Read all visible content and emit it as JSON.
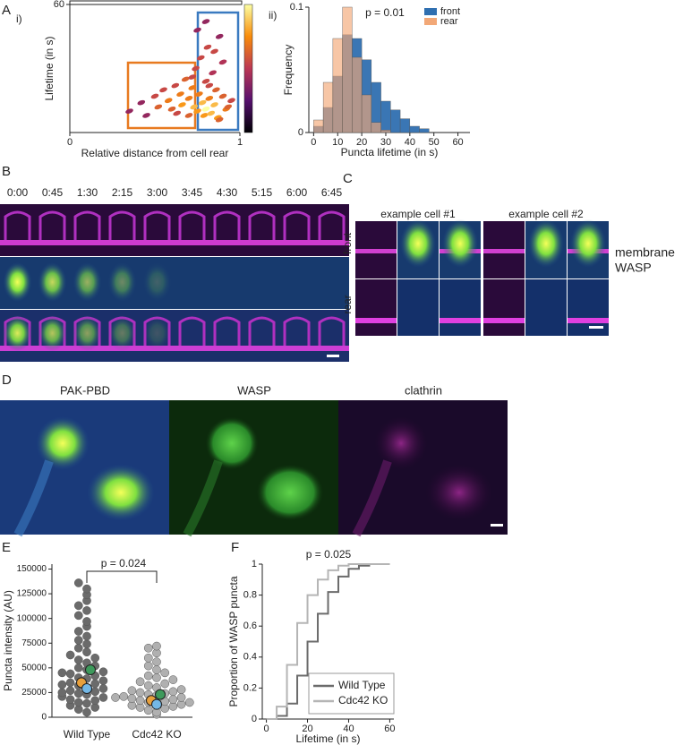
{
  "panel_labels": {
    "a": "A",
    "a_i": "i)",
    "a_ii": "ii)",
    "b": "B",
    "c": "C",
    "d": "D",
    "e": "E",
    "f": "F"
  },
  "chart_data": [
    {
      "type": "scatter",
      "colormap": "inferno",
      "x_label": "Relative distance from cell rear",
      "y_label": "Lifetime (in s)",
      "x": [
        0.35,
        0.42,
        0.45,
        0.5,
        0.52,
        0.55,
        0.58,
        0.6,
        0.62,
        0.63,
        0.65,
        0.66,
        0.68,
        0.7,
        0.7,
        0.72,
        0.73,
        0.74,
        0.75,
        0.76,
        0.77,
        0.78,
        0.79,
        0.8,
        0.8,
        0.81,
        0.82,
        0.83,
        0.84,
        0.85,
        0.86,
        0.87,
        0.88,
        0.9,
        0.92,
        0.95,
        0.75,
        0.8,
        0.85,
        0.9,
        0.72,
        0.82,
        0.88,
        0.93
      ],
      "y": [
        10,
        14,
        8,
        17,
        12,
        20,
        15,
        11,
        22,
        9,
        18,
        13,
        25,
        16,
        8,
        21,
        12,
        30,
        10,
        18,
        35,
        14,
        8,
        24,
        11,
        40,
        16,
        9,
        28,
        13,
        20,
        7,
        45,
        17,
        11,
        15,
        48,
        52,
        38,
        33,
        26,
        22,
        6,
        12
      ],
      "xlim": [
        0,
        1
      ],
      "ylim": [
        0,
        60
      ],
      "xticks": [
        0,
        1
      ],
      "yticks": [
        60
      ]
    },
    {
      "type": "histogram",
      "x_label": "Puncta lifetime (in s)",
      "y_label": "Frequency",
      "annotation": "p = 0.01",
      "bins": [
        0,
        4,
        8,
        12,
        16,
        20,
        24,
        28,
        32,
        36,
        40,
        44,
        48
      ],
      "series": [
        {
          "name": "front",
          "color": "#2f6fb0",
          "values": [
            0.005,
            0.02,
            0.045,
            0.078,
            0.075,
            0.058,
            0.04,
            0.025,
            0.018,
            0.011,
            0.005,
            0.003
          ]
        },
        {
          "name": "rear",
          "color": "#f2a877",
          "values": [
            0.01,
            0.04,
            0.075,
            0.1,
            0.06,
            0.03,
            0.008,
            0.002,
            0,
            0,
            0,
            0
          ]
        }
      ],
      "xlim": [
        -2,
        65
      ],
      "ylim": [
        0,
        0.1
      ],
      "xticks": [
        0,
        10,
        20,
        30,
        40,
        50,
        60
      ],
      "yticks": [
        0,
        0.1
      ]
    },
    {
      "type": "swarm",
      "y_label": "Puncta intensity (AU)",
      "annotation": "p = 0.024",
      "categories": [
        "Wild Type",
        "Cdc42 KO"
      ],
      "colors": [
        "#6b6b6b",
        "#b0b0b0"
      ],
      "values": [
        [
          5000,
          8000,
          10000,
          12000,
          14000,
          15000,
          17000,
          18000,
          20000,
          21000,
          23000,
          24000,
          26000,
          27000,
          29000,
          30000,
          32000,
          34000,
          35000,
          37000,
          39000,
          40000,
          42000,
          44000,
          46000,
          48000,
          50000,
          52000,
          55000,
          58000,
          60000,
          63000,
          66000,
          70000,
          74000,
          78000,
          82000,
          87000,
          92000,
          97000,
          103000,
          108000,
          113000,
          118000,
          124000,
          130000,
          136000,
          25000,
          33000,
          45000
        ],
        [
          3000,
          5000,
          7000,
          9000,
          10000,
          11000,
          12000,
          13000,
          14000,
          15000,
          16000,
          17000,
          18000,
          19000,
          20000,
          21000,
          22000,
          23000,
          24000,
          25000,
          26000,
          27000,
          28000,
          30000,
          32000,
          34000,
          36000,
          38000,
          40000,
          42000,
          45000,
          48000,
          52000,
          56000,
          60000,
          65000,
          70000,
          72000,
          15000,
          20000
        ]
      ],
      "replicate_means": [
        {
          "color": "#3e9a5c",
          "values": [
            48000,
            23000
          ]
        },
        {
          "color": "#e8a03c",
          "values": [
            35000,
            17000
          ]
        },
        {
          "color": "#74b8e6",
          "values": [
            29000,
            13000
          ]
        }
      ],
      "ylim": [
        0,
        155000
      ],
      "yticks": [
        0,
        25000,
        50000,
        75000,
        100000,
        125000,
        150000
      ]
    },
    {
      "type": "step",
      "x_label": "Lifetime (in s)",
      "y_label": "Proportion of WASP puncta",
      "annotation": "p = 0.025",
      "x": [
        0,
        5,
        10,
        15,
        20,
        25,
        30,
        35,
        40,
        45,
        50,
        55,
        60
      ],
      "series": [
        {
          "name": "Wild Type",
          "color": "#6b6b6b",
          "values": [
            0,
            0.02,
            0.1,
            0.28,
            0.5,
            0.68,
            0.82,
            0.92,
            0.97,
            0.99,
            1,
            1,
            1
          ]
        },
        {
          "name": "Cdc42 KO",
          "color": "#b5b5b5",
          "values": [
            0,
            0.08,
            0.35,
            0.62,
            0.8,
            0.9,
            0.96,
            0.99,
            1,
            1,
            1,
            1,
            1
          ]
        }
      ],
      "xlim": [
        -2,
        62
      ],
      "ylim": [
        0,
        1
      ],
      "xticks": [
        0,
        20,
        40,
        60
      ],
      "yticks": [
        0,
        0.2,
        0.4,
        0.6,
        0.8,
        1
      ]
    }
  ],
  "panel_b": {
    "times": [
      "0:00",
      "0:45",
      "1:30",
      "2:15",
      "3:00",
      "3:45",
      "4:30",
      "5:15",
      "6:00",
      "6:45"
    ]
  },
  "panel_c": {
    "columns": [
      "example cell #1",
      "example cell #2"
    ],
    "rows": [
      "front",
      "rear"
    ],
    "channels": [
      {
        "name": "membrane",
        "color": "#d81fb8"
      },
      {
        "name": "WASP",
        "color": "#3aa84a"
      }
    ]
  },
  "panel_d": {
    "channels": [
      "PAK-PBD",
      "WASP",
      "clathrin"
    ]
  }
}
